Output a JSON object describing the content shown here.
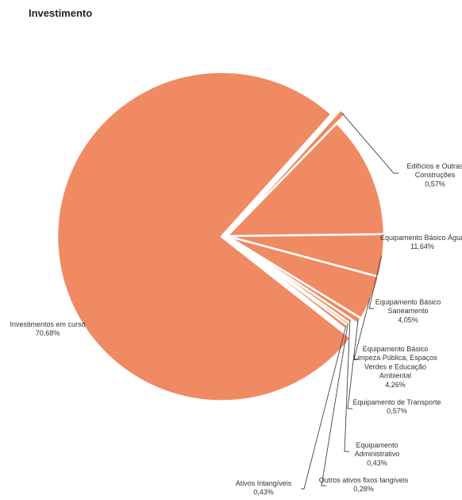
{
  "chart_data": {
    "type": "pie",
    "title": "Investimento",
    "slices": [
      {
        "label": [
          "Edifícios e Outras",
          "Construções"
        ],
        "value_label": "0,57%",
        "value": 0.57
      },
      {
        "label": [
          "Equipamento Básico Água"
        ],
        "value_label": "11,64%",
        "value": 11.64
      },
      {
        "label": [
          "Equipamento Básico",
          "Saneamento"
        ],
        "value_label": "4,05%",
        "value": 4.05
      },
      {
        "label": [
          "Equipamento Básico",
          "Limpeza Pública, Espaços",
          "Verdes e Educação",
          "Ambiental"
        ],
        "value_label": "4,26%",
        "value": 4.26
      },
      {
        "label": [
          "Equipamento de Transporte"
        ],
        "value_label": "0,57%",
        "value": 0.57
      },
      {
        "label": [
          "Equipamento",
          "Administrativo"
        ],
        "value_label": "0,43%",
        "value": 0.43
      },
      {
        "label": [
          "Outros ativos fixos tangíveis"
        ],
        "value_label": "0,28%",
        "value": 0.28
      },
      {
        "label": [
          "Ativos Intangíveis"
        ],
        "value_label": "0,43%",
        "value": 0.43
      },
      {
        "label": [
          "Investimentos em curso"
        ],
        "value_label": "70,68%",
        "value": 70.68
      }
    ],
    "colors": {
      "slice": "#f08a62",
      "separator": "#ffffff",
      "text": "#333333",
      "leader": "#444444"
    }
  }
}
